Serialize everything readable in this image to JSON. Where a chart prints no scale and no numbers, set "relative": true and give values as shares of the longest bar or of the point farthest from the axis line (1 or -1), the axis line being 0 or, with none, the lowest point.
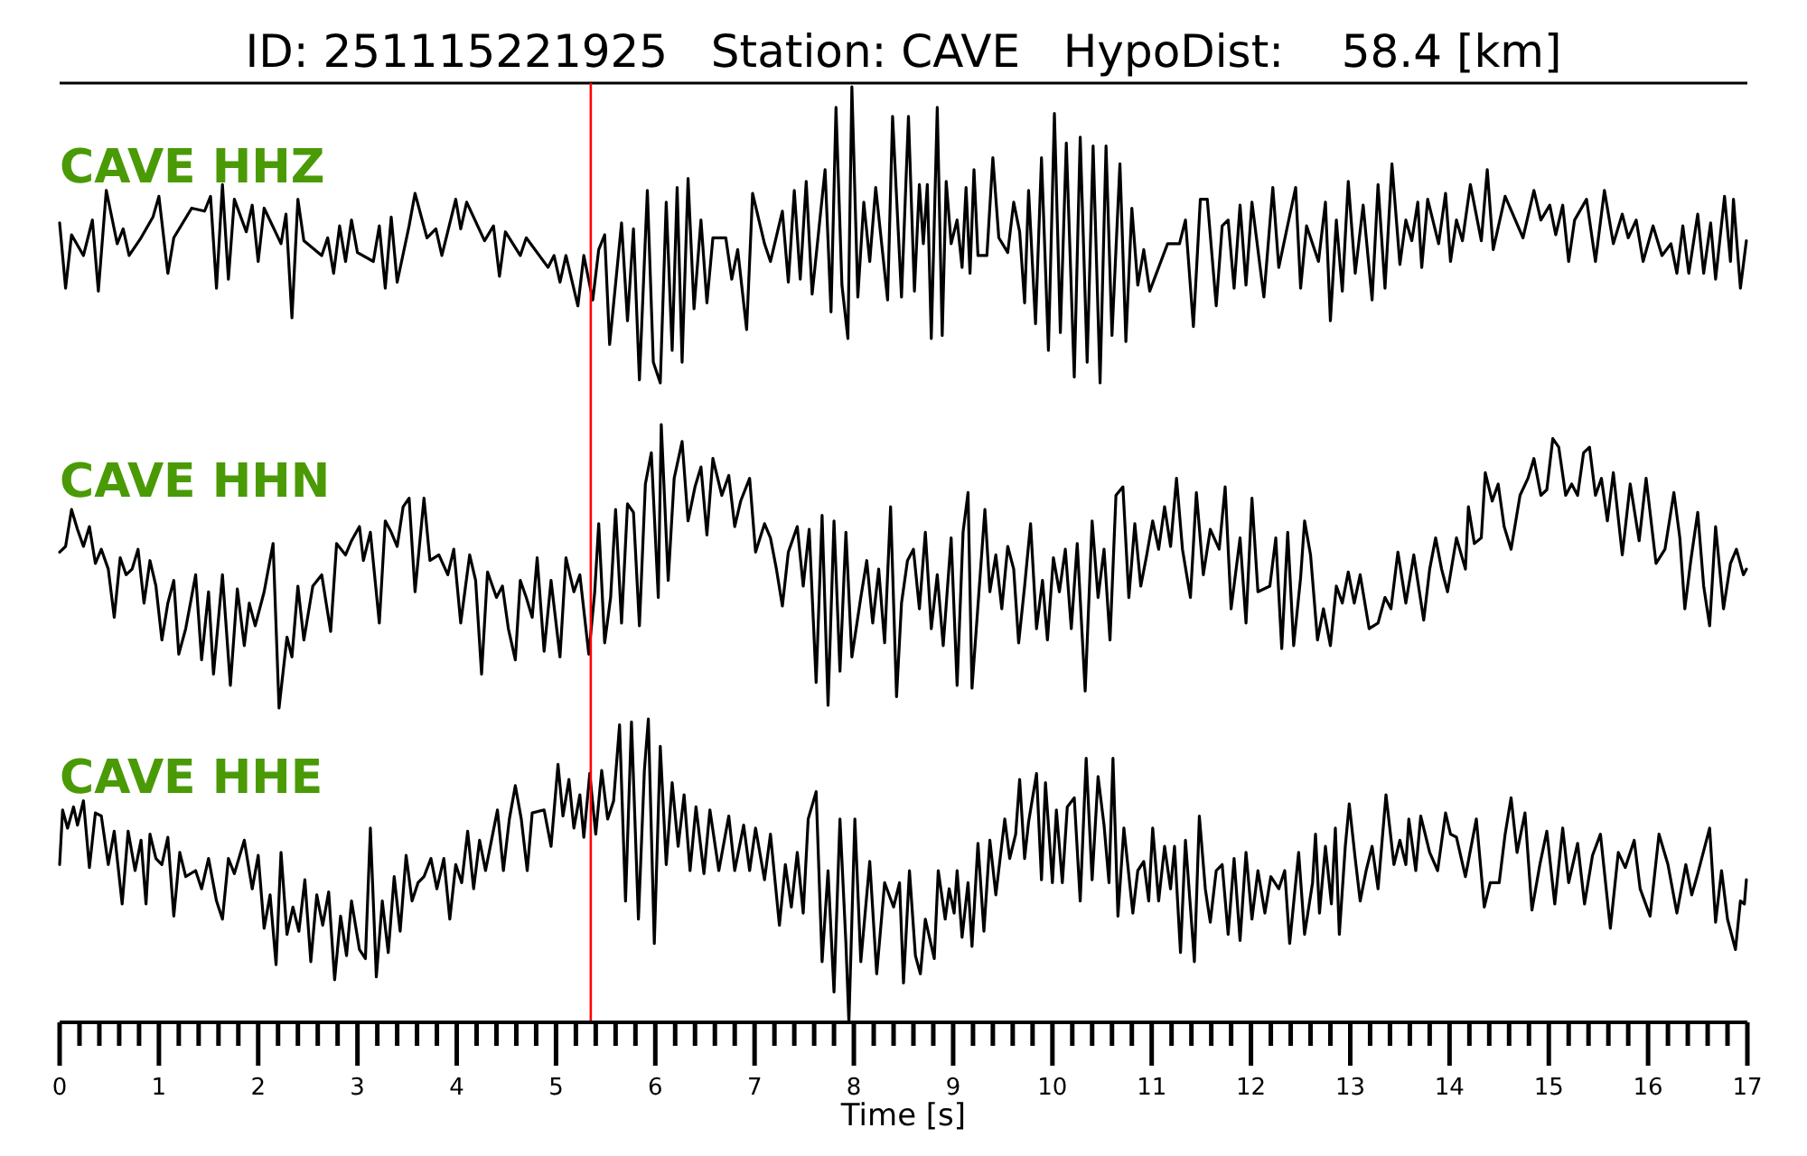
{
  "chart_data": [
    {
      "type": "line",
      "title": "ID: 251115221925   Station: CAVE   HypoDist:    58.4 [km]",
      "xlim": [
        0,
        17
      ],
      "relative": true,
      "tick_labels": false,
      "ref_lines": [
        {
          "axis": "x",
          "value": 5.35,
          "color": "#ff0000"
        }
      ],
      "series": [
        {
          "name": "CAVE HHZ",
          "color": "#000000",
          "x": [
            0,
            0.06,
            0.12,
            0.24,
            0.33,
            0.39,
            0.47,
            0.58,
            0.64,
            0.7,
            0.82,
            0.94,
            1,
            1.09,
            1.15,
            1.33,
            1.46,
            1.52,
            1.58,
            1.64,
            1.7,
            1.76,
            1.88,
            1.94,
            2,
            2.06,
            2.23,
            2.28,
            2.34,
            2.4,
            2.46,
            2.64,
            2.7,
            2.76,
            2.82,
            2.88,
            2.94,
            3,
            3.16,
            3.22,
            3.28,
            3.34,
            3.4,
            3.52,
            3.58,
            3.7,
            3.79,
            3.85,
            3.99,
            4.04,
            4.1,
            4.28,
            4.37,
            4.43,
            4.49,
            4.64,
            4.7,
            4.92,
            4.98,
            5.04,
            5.1,
            5.22,
            5.28,
            5.37,
            5.43,
            5.49,
            5.54,
            5.66,
            5.72,
            5.78,
            5.84,
            5.92,
            5.98,
            6.05,
            6.11,
            6.17,
            6.22,
            6.27,
            6.33,
            6.39,
            6.46,
            6.52,
            6.58,
            6.71,
            6.77,
            6.83,
            6.92,
            6.98,
            7.1,
            7.16,
            7.28,
            7.34,
            7.4,
            7.46,
            7.52,
            7.58,
            7.71,
            7.77,
            7.82,
            7.88,
            7.94,
            7.98,
            8.04,
            8.1,
            8.16,
            8.22,
            8.34,
            8.39,
            8.48,
            8.55,
            8.61,
            8.66,
            8.7,
            8.74,
            8.78,
            8.84,
            8.89,
            8.93,
            8.98,
            9.04,
            9.09,
            9.13,
            9.17,
            9.21,
            9.25,
            9.34,
            9.4,
            9.46,
            9.55,
            9.61,
            9.67,
            9.72,
            9.76,
            9.83,
            9.89,
            9.96,
            10.02,
            10.08,
            10.14,
            10.22,
            10.28,
            10.35,
            10.41,
            10.48,
            10.54,
            10.6,
            10.68,
            10.74,
            10.8,
            10.86,
            10.92,
            10.98,
            11.16,
            11.28,
            11.34,
            11.42,
            11.49,
            11.56,
            11.65,
            11.71,
            11.77,
            11.83,
            11.89,
            11.95,
            12.01,
            12.13,
            12.22,
            12.28,
            12.45,
            12.5,
            12.56,
            12.68,
            12.75,
            12.8,
            12.86,
            12.92,
            12.98,
            13.05,
            13.13,
            13.22,
            13.28,
            13.35,
            13.42,
            13.5,
            13.56,
            13.62,
            13.68,
            13.72,
            13.78,
            13.89,
            13.96,
            14.01,
            14.07,
            14.13,
            14.21,
            14.32,
            14.38,
            14.44,
            14.56,
            14.74,
            14.85,
            14.92,
            15.01,
            15.07,
            15.14,
            15.2,
            15.26,
            15.38,
            15.47,
            15.56,
            15.65,
            15.74,
            15.8,
            15.88,
            15.95,
            16.05,
            16.14,
            16.23,
            16.29,
            16.35,
            16.41,
            16.5,
            16.56,
            16.63,
            16.68,
            16.77,
            16.83,
            16.86,
            16.93,
            16.99
          ],
          "values": [
            0.54,
            0.32,
            0.5,
            0.43,
            0.55,
            0.31,
            0.65,
            0.47,
            0.52,
            0.43,
            0.49,
            0.56,
            0.63,
            0.37,
            0.49,
            0.59,
            0.58,
            0.63,
            0.32,
            0.67,
            0.35,
            0.62,
            0.51,
            0.6,
            0.41,
            0.59,
            0.47,
            0.57,
            0.22,
            0.62,
            0.48,
            0.43,
            0.49,
            0.37,
            0.53,
            0.41,
            0.55,
            0.44,
            0.41,
            0.53,
            0.32,
            0.56,
            0.34,
            0.53,
            0.64,
            0.49,
            0.52,
            0.43,
            0.62,
            0.52,
            0.61,
            0.48,
            0.53,
            0.36,
            0.51,
            0.43,
            0.49,
            0.39,
            0.43,
            0.34,
            0.43,
            0.26,
            0.43,
            0.28,
            0.45,
            0.5,
            0.13,
            0.54,
            0.21,
            0.52,
            0.01,
            0.65,
            0.07,
            0,
            0.61,
            0.11,
            0.66,
            0.07,
            0.69,
            0.25,
            0.55,
            0.27,
            0.49,
            0.49,
            0.35,
            0.45,
            0.18,
            0.64,
            0.47,
            0.41,
            0.58,
            0.34,
            0.65,
            0.35,
            0.68,
            0.3,
            0.72,
            0.24,
            0.93,
            0.33,
            0.15,
            1,
            0.29,
            0.61,
            0.41,
            0.66,
            0.28,
            0.9,
            0.29,
            0.9,
            0.31,
            0.67,
            0.47,
            0.67,
            0.15,
            0.93,
            0.16,
            0.68,
            0.47,
            0.55,
            0.39,
            0.66,
            0.37,
            0.72,
            0.43,
            0.43,
            0.76,
            0.49,
            0.44,
            0.61,
            0.51,
            0.27,
            0.65,
            0.2,
            0.76,
            0.11,
            0.91,
            0.17,
            0.81,
            0.02,
            0.83,
            0.07,
            0.8,
            0,
            0.8,
            0.16,
            0.74,
            0.14,
            0.59,
            0.33,
            0.45,
            0.31,
            0.47,
            0.47,
            0.55,
            0.19,
            0.62,
            0.62,
            0.26,
            0.53,
            0.55,
            0.32,
            0.6,
            0.33,
            0.61,
            0.29,
            0.66,
            0.39,
            0.66,
            0.32,
            0.53,
            0.41,
            0.61,
            0.21,
            0.55,
            0.31,
            0.68,
            0.37,
            0.6,
            0.28,
            0.67,
            0.32,
            0.74,
            0.4,
            0.55,
            0.48,
            0.61,
            0.39,
            0.62,
            0.47,
            0.64,
            0.41,
            0.55,
            0.48,
            0.67,
            0.48,
            0.72,
            0.45,
            0.63,
            0.49,
            0.65,
            0.55,
            0.6,
            0.5,
            0.6,
            0.41,
            0.55,
            0.62,
            0.41,
            0.65,
            0.47,
            0.57,
            0.49,
            0.55,
            0.41,
            0.53,
            0.43,
            0.47,
            0.37,
            0.53,
            0.37,
            0.57,
            0.37,
            0.54,
            0.35,
            0.63,
            0.41,
            0.62,
            0.32,
            0.48
          ]
        }
      ]
    },
    {
      "type": "line",
      "xlim": [
        0,
        17
      ],
      "relative": true,
      "tick_labels": false,
      "ref_lines": [
        {
          "axis": "x",
          "value": 5.35,
          "color": "#ff0000"
        }
      ],
      "series": [
        {
          "name": "CAVE HHN",
          "color": "#000000",
          "x": [
            0,
            0.06,
            0.12,
            0.18,
            0.24,
            0.3,
            0.36,
            0.42,
            0.49,
            0.55,
            0.61,
            0.67,
            0.73,
            0.79,
            0.85,
            0.91,
            0.97,
            1.03,
            1.09,
            1.15,
            1.2,
            1.27,
            1.37,
            1.43,
            1.5,
            1.55,
            1.64,
            1.72,
            1.79,
            1.86,
            1.91,
            1.97,
            2.06,
            2.15,
            2.21,
            2.29,
            2.34,
            2.4,
            2.46,
            2.55,
            2.64,
            2.73,
            2.79,
            2.88,
            2.94,
            3.02,
            3.06,
            3.13,
            3.22,
            3.28,
            3.34,
            3.4,
            3.46,
            3.52,
            3.58,
            3.67,
            3.73,
            3.82,
            3.91,
            3.97,
            4.04,
            4.13,
            4.19,
            4.25,
            4.31,
            4.4,
            4.46,
            4.52,
            4.59,
            4.64,
            4.7,
            4.76,
            4.81,
            4.88,
            4.95,
            5.04,
            5.1,
            5.18,
            5.24,
            5.33,
            5.39,
            5.43,
            5.49,
            5.55,
            5.6,
            5.66,
            5.72,
            5.78,
            5.84,
            5.9,
            5.96,
            6.03,
            6.06,
            6.13,
            6.19,
            6.27,
            6.33,
            6.4,
            6.46,
            6.52,
            6.58,
            6.67,
            6.74,
            6.8,
            6.86,
            6.95,
            7.01,
            7.1,
            7.16,
            7.22,
            7.28,
            7.34,
            7.43,
            7.49,
            7.55,
            7.62,
            7.68,
            7.74,
            7.8,
            7.86,
            7.92,
            7.98,
            8.07,
            8.13,
            8.19,
            8.25,
            8.31,
            8.37,
            8.43,
            8.48,
            8.54,
            8.6,
            8.66,
            8.72,
            8.78,
            8.84,
            8.9,
            8.98,
            9.04,
            9.1,
            9.15,
            9.19,
            9.32,
            9.37,
            9.43,
            9.49,
            9.55,
            9.61,
            9.66,
            9.72,
            9.78,
            9.84,
            9.9,
            9.95,
            10.01,
            10.07,
            10.13,
            10.19,
            10.25,
            10.33,
            10.4,
            10.46,
            10.52,
            10.58,
            10.64,
            10.71,
            10.77,
            10.83,
            10.89,
            10.95,
            11.01,
            11.07,
            11.13,
            11.19,
            11.25,
            11.31,
            11.39,
            11.45,
            11.52,
            11.59,
            11.68,
            11.74,
            11.8,
            11.89,
            11.95,
            12.01,
            12.07,
            12.19,
            12.25,
            12.31,
            12.37,
            12.43,
            12.5,
            12.54,
            12.6,
            12.67,
            12.73,
            12.8,
            12.86,
            12.92,
            12.98,
            13.04,
            13.1,
            13.19,
            13.28,
            13.35,
            13.41,
            13.48,
            13.56,
            13.64,
            13.74,
            13.8,
            13.86,
            13.92,
            13.98,
            14.07,
            14.16,
            14.19,
            14.25,
            14.32,
            14.36,
            14.43,
            14.49,
            14.55,
            14.62,
            14.71,
            14.79,
            14.85,
            14.92,
            14.98,
            15.04,
            15.1,
            15.17,
            15.23,
            15.29,
            15.35,
            15.41,
            15.47,
            15.53,
            15.59,
            15.65,
            15.74,
            15.82,
            15.91,
            15.98,
            16.08,
            16.17,
            16.26,
            16.32,
            16.37,
            16.43,
            16.5,
            16.56,
            16.62,
            16.68,
            16.76,
            16.83,
            16.89,
            16.96,
            16.99
          ],
          "values": [
            0.55,
            0.57,
            0.7,
            0.63,
            0.57,
            0.64,
            0.51,
            0.56,
            0.49,
            0.32,
            0.53,
            0.47,
            0.49,
            0.56,
            0.37,
            0.52,
            0.43,
            0.24,
            0.37,
            0.45,
            0.19,
            0.28,
            0.47,
            0.17,
            0.41,
            0.12,
            0.47,
            0.08,
            0.42,
            0.22,
            0.37,
            0.29,
            0.41,
            0.58,
            0,
            0.25,
            0.18,
            0.43,
            0.24,
            0.43,
            0.47,
            0.27,
            0.58,
            0.54,
            0.59,
            0.64,
            0.52,
            0.62,
            0.3,
            0.66,
            0.62,
            0.57,
            0.71,
            0.74,
            0.41,
            0.74,
            0.52,
            0.54,
            0.47,
            0.56,
            0.3,
            0.54,
            0.45,
            0.12,
            0.48,
            0.39,
            0.43,
            0.28,
            0.17,
            0.45,
            0.39,
            0.32,
            0.53,
            0.2,
            0.45,
            0.18,
            0.53,
            0.41,
            0.47,
            0.19,
            0.41,
            0.65,
            0.23,
            0.39,
            0.7,
            0.3,
            0.72,
            0.69,
            0.29,
            0.79,
            0.9,
            0.39,
            1,
            0.45,
            0.81,
            0.94,
            0.66,
            0.78,
            0.85,
            0.61,
            0.88,
            0.75,
            0.82,
            0.64,
            0.73,
            0.81,
            0.55,
            0.65,
            0.6,
            0.49,
            0.36,
            0.55,
            0.64,
            0.43,
            0.63,
            0.09,
            0.68,
            0.01,
            0.66,
            0.13,
            0.62,
            0.18,
            0.39,
            0.52,
            0.3,
            0.49,
            0.23,
            0.71,
            0.04,
            0.37,
            0.52,
            0.56,
            0.35,
            0.62,
            0.28,
            0.47,
            0.22,
            0.6,
            0.08,
            0.62,
            0.76,
            0.07,
            0.7,
            0.41,
            0.54,
            0.35,
            0.57,
            0.49,
            0.23,
            0.43,
            0.65,
            0.28,
            0.45,
            0.24,
            0.53,
            0.41,
            0.56,
            0.28,
            0.58,
            0.06,
            0.66,
            0.39,
            0.56,
            0.24,
            0.75,
            0.78,
            0.39,
            0.65,
            0.43,
            0.54,
            0.66,
            0.56,
            0.71,
            0.57,
            0.81,
            0.56,
            0.39,
            0.76,
            0.47,
            0.63,
            0.56,
            0.78,
            0.35,
            0.6,
            0.3,
            0.74,
            0.41,
            0.43,
            0.6,
            0.21,
            0.62,
            0.22,
            0.46,
            0.66,
            0.54,
            0.24,
            0.35,
            0.22,
            0.43,
            0.37,
            0.48,
            0.37,
            0.47,
            0.28,
            0.3,
            0.39,
            0.35,
            0.55,
            0.37,
            0.54,
            0.31,
            0.49,
            0.6,
            0.49,
            0.41,
            0.6,
            0.49,
            0.71,
            0.58,
            0.6,
            0.83,
            0.73,
            0.79,
            0.64,
            0.56,
            0.75,
            0.81,
            0.88,
            0.75,
            0.77,
            0.95,
            0.92,
            0.75,
            0.79,
            0.75,
            0.9,
            0.92,
            0.75,
            0.81,
            0.66,
            0.83,
            0.54,
            0.79,
            0.59,
            0.81,
            0.51,
            0.56,
            0.76,
            0.6,
            0.35,
            0.52,
            0.69,
            0.43,
            0.29,
            0.64,
            0.35,
            0.51,
            0.56,
            0.47,
            0.49
          ]
        }
      ]
    },
    {
      "type": "line",
      "xlabel": "Time [s]",
      "xlim": [
        0,
        17
      ],
      "relative": true,
      "tick_labels": "x",
      "ref_lines": [
        {
          "axis": "x",
          "value": 5.35,
          "color": "#ff0000"
        }
      ],
      "xticks": [
        0,
        {
          "value": 0.2,
          "label": null
        },
        {
          "value": 0.4,
          "label": null
        },
        {
          "value": 0.6,
          "label": null
        },
        {
          "value": 0.8,
          "label": null
        },
        1,
        {
          "value": 1.2,
          "label": null
        },
        {
          "value": 1.4,
          "label": null
        },
        {
          "value": 1.6,
          "label": null
        },
        {
          "value": 1.8,
          "label": null
        },
        2,
        {
          "value": 2.2,
          "label": null
        },
        {
          "value": 2.4,
          "label": null
        },
        {
          "value": 2.6,
          "label": null
        },
        {
          "value": 2.8,
          "label": null
        },
        3,
        {
          "value": 3.2,
          "label": null
        },
        {
          "value": 3.4,
          "label": null
        },
        {
          "value": 3.6,
          "label": null
        },
        {
          "value": 3.8,
          "label": null
        },
        4,
        {
          "value": 4.2,
          "label": null
        },
        {
          "value": 4.4,
          "label": null
        },
        {
          "value": 4.6,
          "label": null
        },
        {
          "value": 4.8,
          "label": null
        },
        5,
        {
          "value": 5.2,
          "label": null
        },
        {
          "value": 5.4,
          "label": null
        },
        {
          "value": 5.6,
          "label": null
        },
        {
          "value": 5.8,
          "label": null
        },
        6,
        {
          "value": 6.2,
          "label": null
        },
        {
          "value": 6.4,
          "label": null
        },
        {
          "value": 6.6,
          "label": null
        },
        {
          "value": 6.8,
          "label": null
        },
        7,
        {
          "value": 7.2,
          "label": null
        },
        {
          "value": 7.4,
          "label": null
        },
        {
          "value": 7.6,
          "label": null
        },
        {
          "value": 7.8,
          "label": null
        },
        8,
        {
          "value": 8.2,
          "label": null
        },
        {
          "value": 8.4,
          "label": null
        },
        {
          "value": 8.6,
          "label": null
        },
        {
          "value": 8.8,
          "label": null
        },
        9,
        {
          "value": 9.2,
          "label": null
        },
        {
          "value": 9.4,
          "label": null
        },
        {
          "value": 9.6,
          "label": null
        },
        {
          "value": 9.8,
          "label": null
        },
        10,
        {
          "value": 10.2,
          "label": null
        },
        {
          "value": 10.4,
          "label": null
        },
        {
          "value": 10.6,
          "label": null
        },
        {
          "value": 10.8,
          "label": null
        },
        11,
        {
          "value": 11.2,
          "label": null
        },
        {
          "value": 11.4,
          "label": null
        },
        {
          "value": 11.6,
          "label": null
        },
        {
          "value": 11.8,
          "label": null
        },
        12,
        {
          "value": 12.2,
          "label": null
        },
        {
          "value": 12.4,
          "label": null
        },
        {
          "value": 12.6,
          "label": null
        },
        {
          "value": 12.8,
          "label": null
        },
        13,
        {
          "value": 13.2,
          "label": null
        },
        {
          "value": 13.4,
          "label": null
        },
        {
          "value": 13.6,
          "label": null
        },
        {
          "value": 13.8,
          "label": null
        },
        14,
        {
          "value": 14.2,
          "label": null
        },
        {
          "value": 14.4,
          "label": null
        },
        {
          "value": 14.6,
          "label": null
        },
        {
          "value": 14.8,
          "label": null
        },
        15,
        {
          "value": 15.2,
          "label": null
        },
        {
          "value": 15.4,
          "label": null
        },
        {
          "value": 15.6,
          "label": null
        },
        {
          "value": 15.8,
          "label": null
        },
        16,
        {
          "value": 16.2,
          "label": null
        },
        {
          "value": 16.4,
          "label": null
        },
        {
          "value": 16.6,
          "label": null
        },
        {
          "value": 16.8,
          "label": null
        },
        17
      ],
      "series": [
        {
          "name": "CAVE HHE",
          "color": "#000000",
          "x": [
            0,
            0.03,
            0.08,
            0.14,
            0.18,
            0.24,
            0.3,
            0.36,
            0.42,
            0.49,
            0.55,
            0.63,
            0.69,
            0.76,
            0.82,
            0.87,
            0.91,
            0.97,
            1.03,
            1.09,
            1.15,
            1.21,
            1.27,
            1.37,
            1.43,
            1.5,
            1.58,
            1.64,
            1.7,
            1.76,
            1.86,
            1.94,
            2,
            2.06,
            2.12,
            2.18,
            2.23,
            2.29,
            2.35,
            2.41,
            2.47,
            2.53,
            2.59,
            2.65,
            2.71,
            2.77,
            2.83,
            2.89,
            2.94,
            3.02,
            3.08,
            3.13,
            3.19,
            3.25,
            3.31,
            3.37,
            3.43,
            3.49,
            3.55,
            3.61,
            3.67,
            3.74,
            3.8,
            3.87,
            3.93,
            3.99,
            4.05,
            4.11,
            4.17,
            4.23,
            4.29,
            4.35,
            4.41,
            4.47,
            4.53,
            4.59,
            4.65,
            4.71,
            4.76,
            4.88,
            4.95,
            5.02,
            5.07,
            5.13,
            5.18,
            5.24,
            5.28,
            5.34,
            5.4,
            5.46,
            5.52,
            5.58,
            5.64,
            5.7,
            5.76,
            5.83,
            5.89,
            5.93,
            5.99,
            6.05,
            6.11,
            6.17,
            6.23,
            6.29,
            6.35,
            6.41,
            6.49,
            6.55,
            6.64,
            6.74,
            6.8,
            6.89,
            6.95,
            7.01,
            7.1,
            7.16,
            7.25,
            7.31,
            7.37,
            7.43,
            7.49,
            7.54,
            7.62,
            7.68,
            7.74,
            7.8,
            7.86,
            7.92,
            7.95,
            8.01,
            8.07,
            8.16,
            8.23,
            8.31,
            8.4,
            8.46,
            8.5,
            8.56,
            8.62,
            8.67,
            8.72,
            8.81,
            8.85,
            8.92,
            8.96,
            9.01,
            9.04,
            9.09,
            9.15,
            9.19,
            9.25,
            9.31,
            9.37,
            9.43,
            9.52,
            9.57,
            9.63,
            9.67,
            9.72,
            9.76,
            9.84,
            9.89,
            9.93,
            10,
            10.04,
            10.1,
            10.15,
            10.22,
            10.28,
            10.34,
            10.4,
            10.46,
            10.52,
            10.57,
            10.61,
            10.66,
            10.72,
            10.81,
            10.86,
            10.92,
            10.97,
            11.01,
            11.07,
            11.13,
            11.19,
            11.23,
            11.29,
            11.34,
            11.39,
            11.43,
            11.48,
            11.54,
            11.59,
            11.65,
            11.71,
            11.77,
            11.83,
            11.89,
            11.95,
            12.01,
            12.07,
            12.14,
            12.2,
            12.28,
            12.34,
            12.39,
            12.48,
            12.54,
            12.62,
            12.65,
            12.69,
            12.75,
            12.81,
            12.85,
            12.89,
            12.95,
            12.99,
            13.05,
            13.1,
            13.16,
            13.22,
            13.28,
            13.36,
            13.44,
            13.5,
            13.56,
            13.59,
            13.66,
            13.71,
            13.8,
            13.88,
            13.96,
            14.01,
            14.07,
            14.16,
            14.27,
            14.35,
            14.41,
            14.5,
            14.56,
            14.62,
            14.68,
            14.76,
            14.83,
            14.91,
            14.98,
            15.06,
            15.14,
            15.2,
            15.29,
            15.36,
            15.44,
            15.52,
            15.62,
            15.7,
            15.77,
            15.86,
            15.92,
            16.02,
            16.11,
            16.2,
            16.29,
            16.38,
            16.44,
            16.5,
            16.62,
            16.68,
            16.74,
            16.8,
            16.88,
            16.93,
            16.97,
            16.99
          ],
          "values": [
            0.52,
            0.7,
            0.64,
            0.71,
            0.65,
            0.73,
            0.51,
            0.69,
            0.68,
            0.52,
            0.63,
            0.39,
            0.63,
            0.5,
            0.6,
            0.39,
            0.62,
            0.54,
            0.52,
            0.61,
            0.35,
            0.56,
            0.48,
            0.5,
            0.44,
            0.54,
            0.4,
            0.34,
            0.54,
            0.49,
            0.6,
            0.44,
            0.55,
            0.31,
            0.42,
            0.19,
            0.56,
            0.29,
            0.38,
            0.3,
            0.47,
            0.2,
            0.42,
            0.32,
            0.43,
            0.14,
            0.35,
            0.22,
            0.4,
            0.24,
            0.21,
            0.64,
            0.15,
            0.4,
            0.23,
            0.48,
            0.3,
            0.55,
            0.4,
            0.46,
            0.48,
            0.54,
            0.44,
            0.54,
            0.34,
            0.52,
            0.46,
            0.63,
            0.44,
            0.6,
            0.5,
            0.6,
            0.7,
            0.5,
            0.67,
            0.78,
            0.67,
            0.5,
            0.69,
            0.7,
            0.58,
            0.85,
            0.68,
            0.8,
            0.64,
            0.75,
            0.61,
            0.82,
            0.62,
            0.83,
            0.67,
            0.73,
            0.98,
            0.4,
            0.99,
            0.34,
            0.83,
            1,
            0.26,
            0.91,
            0.52,
            0.79,
            0.58,
            0.75,
            0.5,
            0.71,
            0.49,
            0.7,
            0.5,
            0.68,
            0.5,
            0.65,
            0.5,
            0.64,
            0.47,
            0.62,
            0.32,
            0.52,
            0.38,
            0.56,
            0.36,
            0.67,
            0.76,
            0.2,
            0.5,
            0.1,
            0.67,
            0.26,
            0,
            0.67,
            0.2,
            0.53,
            0.16,
            0.46,
            0.38,
            0.46,
            0.13,
            0.5,
            0.22,
            0.16,
            0.34,
            0.21,
            0.5,
            0.34,
            0.44,
            0.36,
            0.5,
            0.28,
            0.46,
            0.25,
            0.59,
            0.3,
            0.6,
            0.42,
            0.67,
            0.54,
            0.62,
            0.8,
            0.54,
            0.66,
            0.82,
            0.47,
            0.79,
            0.46,
            0.7,
            0.46,
            0.71,
            0.74,
            0.4,
            0.87,
            0.47,
            0.81,
            0.65,
            0.46,
            0.87,
            0.35,
            0.64,
            0.36,
            0.5,
            0.53,
            0.4,
            0.64,
            0.4,
            0.58,
            0.44,
            0.58,
            0.23,
            0.6,
            0.38,
            0.2,
            0.68,
            0.44,
            0.33,
            0.5,
            0.52,
            0.29,
            0.54,
            0.27,
            0.56,
            0.34,
            0.5,
            0.36,
            0.48,
            0.44,
            0.5,
            0.26,
            0.56,
            0.29,
            0.46,
            0.62,
            0.36,
            0.58,
            0.39,
            0.64,
            0.29,
            0.58,
            0.72,
            0.54,
            0.4,
            0.5,
            0.58,
            0.44,
            0.75,
            0.52,
            0.6,
            0.52,
            0.67,
            0.5,
            0.68,
            0.56,
            0.5,
            0.69,
            0.62,
            0.61,
            0.48,
            0.67,
            0.38,
            0.46,
            0.46,
            0.62,
            0.74,
            0.56,
            0.69,
            0.37,
            0.52,
            0.63,
            0.39,
            0.64,
            0.46,
            0.59,
            0.39,
            0.55,
            0.62,
            0.31,
            0.56,
            0.51,
            0.6,
            0.44,
            0.35,
            0.62,
            0.52,
            0.36,
            0.52,
            0.42,
            0.49,
            0.64,
            0.33,
            0.5,
            0.34,
            0.24,
            0.4,
            0.39,
            0.47
          ]
        }
      ]
    }
  ]
}
